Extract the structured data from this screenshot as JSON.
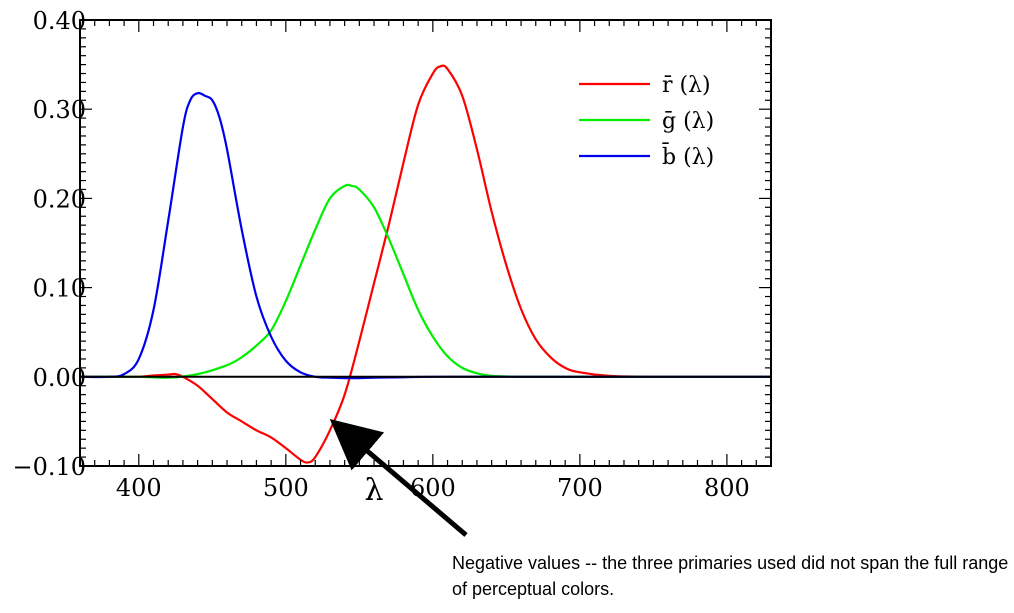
{
  "chart_data": {
    "type": "line",
    "xlabel": "λ",
    "ylabel": "",
    "xlim": [
      360,
      830
    ],
    "ylim": [
      -0.1,
      0.4
    ],
    "xticks": [
      400,
      500,
      600,
      700,
      800
    ],
    "yticks": [
      -0.1,
      0.0,
      0.1,
      0.2,
      0.3,
      0.4
    ],
    "xtick_labels": [
      "400",
      "500",
      "600",
      "700",
      "800"
    ],
    "ytick_labels": [
      "−0.10",
      "0.00",
      "0.10",
      "0.20",
      "0.30",
      "0.40"
    ],
    "legend_position": "top-right",
    "reference_line": {
      "y": 0.0,
      "color": "#000000"
    },
    "series": [
      {
        "name": "r̄ (λ)",
        "color": "#ff0000",
        "x": [
          360,
          380,
          400,
          410,
          420,
          425,
          430,
          440,
          450,
          460,
          470,
          480,
          490,
          500,
          510,
          515,
          520,
          530,
          540,
          550,
          560,
          570,
          580,
          590,
          600,
          605,
          610,
          620,
          630,
          640,
          650,
          660,
          670,
          680,
          690,
          700,
          720,
          750,
          800,
          830
        ],
        "y": [
          0.0,
          0.0,
          0.0,
          0.0015,
          0.0025,
          0.003,
          0.0,
          -0.01,
          -0.025,
          -0.04,
          -0.05,
          -0.06,
          -0.068,
          -0.08,
          -0.093,
          -0.096,
          -0.09,
          -0.06,
          -0.02,
          0.04,
          0.105,
          0.17,
          0.24,
          0.305,
          0.34,
          0.348,
          0.345,
          0.315,
          0.255,
          0.185,
          0.125,
          0.076,
          0.042,
          0.022,
          0.01,
          0.005,
          0.001,
          0.0,
          0.0,
          0.0
        ]
      },
      {
        "name": "ḡ (λ)",
        "color": "#00ee00",
        "x": [
          360,
          400,
          420,
          440,
          460,
          470,
          480,
          490,
          500,
          510,
          520,
          530,
          540,
          545,
          550,
          560,
          570,
          580,
          590,
          600,
          610,
          620,
          630,
          640,
          660,
          680,
          700,
          750,
          830
        ],
        "y": [
          0.0,
          0.0,
          -0.001,
          0.003,
          0.013,
          0.022,
          0.035,
          0.052,
          0.085,
          0.125,
          0.165,
          0.2,
          0.214,
          0.214,
          0.21,
          0.19,
          0.155,
          0.115,
          0.075,
          0.045,
          0.023,
          0.01,
          0.004,
          0.001,
          0.0,
          0.0,
          0.0,
          0.0,
          0.0
        ]
      },
      {
        "name": "b̄ (λ)",
        "color": "#0000ee",
        "x": [
          360,
          380,
          390,
          400,
          410,
          420,
          430,
          435,
          440,
          445,
          450,
          455,
          460,
          470,
          480,
          490,
          500,
          510,
          520,
          530,
          540,
          550,
          560,
          580,
          600,
          650,
          700,
          830
        ],
        "y": [
          0.0,
          0.0,
          0.003,
          0.02,
          0.075,
          0.175,
          0.28,
          0.31,
          0.318,
          0.315,
          0.31,
          0.29,
          0.255,
          0.165,
          0.09,
          0.045,
          0.018,
          0.005,
          0.0,
          -0.001,
          -0.0015,
          -0.0015,
          -0.001,
          -0.0005,
          0.0,
          0.0,
          0.0,
          0.0
        ]
      }
    ]
  },
  "annotation": {
    "text": "Negative values -- the three primaries used did not span the full range of perceptual colors."
  }
}
